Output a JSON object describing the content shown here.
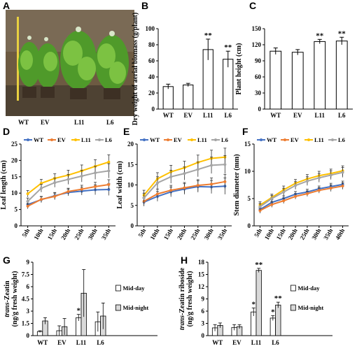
{
  "panels": [
    {
      "id": "A",
      "label": "A"
    },
    {
      "id": "B",
      "label": "B"
    },
    {
      "id": "C",
      "label": "C"
    },
    {
      "id": "D",
      "label": "D"
    },
    {
      "id": "E",
      "label": "E"
    },
    {
      "id": "F",
      "label": "F"
    },
    {
      "id": "G",
      "label": "G"
    },
    {
      "id": "H",
      "label": "H"
    }
  ],
  "photo": {
    "labels": [
      "WT",
      "EV",
      "L11",
      "L6"
    ]
  },
  "colors": {
    "WT": "#4472c4",
    "EV": "#ed7d31",
    "L11": "#ffc000",
    "L6": "#a5a5a5",
    "light_bar": "#ffffff",
    "dark_bar": "#d9d9d9"
  },
  "chart_data": [
    {
      "panel": "B",
      "type": "bar",
      "categories": [
        "WT",
        "EV",
        "L11",
        "L6"
      ],
      "values": [
        28,
        30,
        74,
        62
      ],
      "errors": [
        3,
        2,
        13,
        10
      ],
      "significance": [
        "",
        "",
        "**",
        "**"
      ],
      "ylabel": "Dry weight of aerial biomass (g/plant)",
      "ylim": [
        0,
        100
      ],
      "yticks": [
        "0",
        "20",
        "40",
        "60",
        "80",
        "100"
      ]
    },
    {
      "panel": "C",
      "type": "bar",
      "categories": [
        "WT",
        "EV",
        "L11",
        "L6"
      ],
      "values": [
        108,
        106,
        126,
        127
      ],
      "errors": [
        6,
        5,
        4,
        7
      ],
      "significance": [
        "",
        "",
        "**",
        "**"
      ],
      "ylabel": "Plant height (cm)",
      "ylim": [
        0,
        150
      ],
      "yticks": [
        "0",
        "30",
        "60",
        "90",
        "120",
        "150"
      ]
    },
    {
      "panel": "D",
      "type": "line",
      "x": [
        "5th",
        "10th",
        "15th",
        "20th",
        "25th",
        "30th",
        "35th"
      ],
      "ylabel": "Leaf length (cm)",
      "ylim": [
        0,
        25
      ],
      "yticks": [
        "0",
        "5",
        "10",
        "15",
        "20",
        "25"
      ],
      "series": [
        {
          "name": "WT",
          "values": [
            6.5,
            8.0,
            9.2,
            10.2,
            10.6,
            11.0,
            11.1
          ],
          "errors": [
            0.8,
            0.9,
            1.0,
            1.0,
            1.2,
            1.5,
            1.8
          ]
        },
        {
          "name": "EV",
          "values": [
            6.0,
            8.1,
            9.0,
            10.5,
            11.2,
            12.0,
            12.6
          ],
          "errors": [
            0.8,
            0.9,
            1.0,
            1.0,
            1.2,
            1.3,
            1.5
          ]
        },
        {
          "name": "L11",
          "values": [
            9.8,
            13.0,
            14.5,
            15.5,
            16.8,
            18.2,
            19.5
          ],
          "errors": [
            1.0,
            1.2,
            1.4,
            1.5,
            1.8,
            2.0,
            2.2
          ]
        },
        {
          "name": "L6",
          "values": [
            7.5,
            11.5,
            13.2,
            14.2,
            15.2,
            16.2,
            16.8
          ],
          "errors": [
            1.0,
            1.2,
            1.4,
            1.5,
            1.8,
            2.0,
            2.2
          ]
        }
      ]
    },
    {
      "panel": "E",
      "type": "line",
      "x": [
        "5th",
        "10th",
        "15th",
        "20th",
        "25th",
        "30th",
        "35th"
      ],
      "ylabel": "Leaf width (cm)",
      "ylim": [
        0,
        20
      ],
      "yticks": [
        "0",
        "5",
        "10",
        "15",
        "20"
      ],
      "series": [
        {
          "name": "WT",
          "values": [
            5.8,
            7.2,
            8.3,
            9.0,
            9.6,
            9.5,
            9.7
          ],
          "errors": [
            1.0,
            1.2,
            1.2,
            1.3,
            1.4,
            1.6,
            2.0
          ]
        },
        {
          "name": "EV",
          "values": [
            6.0,
            7.8,
            8.7,
            9.3,
            9.9,
            10.2,
            10.8
          ],
          "errors": [
            1.0,
            1.2,
            1.2,
            1.3,
            1.4,
            1.5,
            1.8
          ]
        },
        {
          "name": "L11",
          "values": [
            7.5,
            11.5,
            13.2,
            14.2,
            15.5,
            16.5,
            16.8
          ],
          "errors": [
            1.2,
            1.5,
            1.6,
            1.6,
            1.8,
            2.0,
            2.2
          ]
        },
        {
          "name": "L6",
          "values": [
            6.8,
            10.5,
            12.0,
            12.8,
            13.8,
            14.8,
            15.0
          ],
          "errors": [
            1.2,
            1.5,
            1.6,
            1.6,
            1.8,
            2.0,
            2.2
          ]
        }
      ]
    },
    {
      "panel": "F",
      "type": "line",
      "x": [
        "5th",
        "10th",
        "15th",
        "20th",
        "25th",
        "30th",
        "35th",
        "40th"
      ],
      "ylabel": "Stem diameter (mm)",
      "ylim": [
        0,
        15
      ],
      "yticks": [
        "0",
        "5",
        "10",
        "15"
      ],
      "series": [
        {
          "name": "WT",
          "values": [
            3.0,
            4.3,
            5.0,
            5.8,
            6.2,
            6.8,
            7.2,
            7.6
          ],
          "errors": [
            0.5,
            0.5,
            0.5,
            0.5,
            0.5,
            0.5,
            0.6,
            0.6
          ]
        },
        {
          "name": "EV",
          "values": [
            2.8,
            3.9,
            4.6,
            5.4,
            5.9,
            6.5,
            6.9,
            7.3
          ],
          "errors": [
            0.5,
            0.5,
            0.5,
            0.5,
            0.5,
            0.5,
            0.6,
            0.6
          ]
        },
        {
          "name": "L11",
          "values": [
            3.8,
            5.2,
            6.6,
            7.8,
            8.6,
            9.2,
            9.6,
            10.1
          ],
          "errors": [
            0.6,
            0.6,
            0.7,
            0.7,
            0.8,
            0.8,
            0.8,
            0.9
          ]
        },
        {
          "name": "L6",
          "values": [
            3.5,
            5.0,
            6.2,
            7.4,
            8.2,
            8.8,
            9.3,
            9.8
          ],
          "errors": [
            0.6,
            0.6,
            0.7,
            0.7,
            0.8,
            0.8,
            0.8,
            0.9
          ]
        }
      ]
    },
    {
      "panel": "G",
      "type": "bar",
      "categories": [
        "WT",
        "EV",
        "L11",
        "L6"
      ],
      "ylabel_italic": "trans",
      "ylabel_rest": "-Zeatin",
      "ylabel2": "(ng/g fresh weight)",
      "ylim": [
        0,
        9
      ],
      "yticks": [
        "0",
        "1.5",
        "3",
        "4.5",
        "6",
        "7.5",
        "9"
      ],
      "series": [
        {
          "name": "Mid-day",
          "values": [
            0.5,
            0.6,
            2.2,
            1.7
          ],
          "errors": [
            0.1,
            0.6,
            0.4,
            1.2
          ],
          "significance": [
            "",
            "",
            "*",
            ""
          ]
        },
        {
          "name": "Mid-night",
          "values": [
            1.8,
            1.1,
            5.2,
            2.4
          ],
          "errors": [
            0.4,
            1.0,
            2.9,
            1.6
          ],
          "significance": [
            "",
            "",
            "",
            ""
          ]
        }
      ]
    },
    {
      "panel": "H",
      "type": "bar",
      "categories": [
        "WT",
        "EV",
        "L11",
        "L6"
      ],
      "ylabel_italic": "trans",
      "ylabel_rest": "-Zeatin riboside",
      "ylabel2": "(ng/g fresh weight)",
      "ylim": [
        0,
        18
      ],
      "yticks": [
        "0",
        "3",
        "6",
        "9",
        "12",
        "15",
        "18"
      ],
      "series": [
        {
          "name": "Mid-day",
          "values": [
            1.9,
            2.0,
            5.8,
            4.3
          ],
          "errors": [
            0.8,
            0.7,
            1.0,
            0.6
          ],
          "significance": [
            "",
            "",
            "*",
            "*"
          ]
        },
        {
          "name": "Mid-night",
          "values": [
            2.5,
            2.2,
            16.0,
            7.5
          ],
          "errors": [
            0.6,
            0.5,
            0.5,
            0.7
          ],
          "significance": [
            "",
            "",
            "**",
            "**"
          ]
        }
      ]
    }
  ]
}
